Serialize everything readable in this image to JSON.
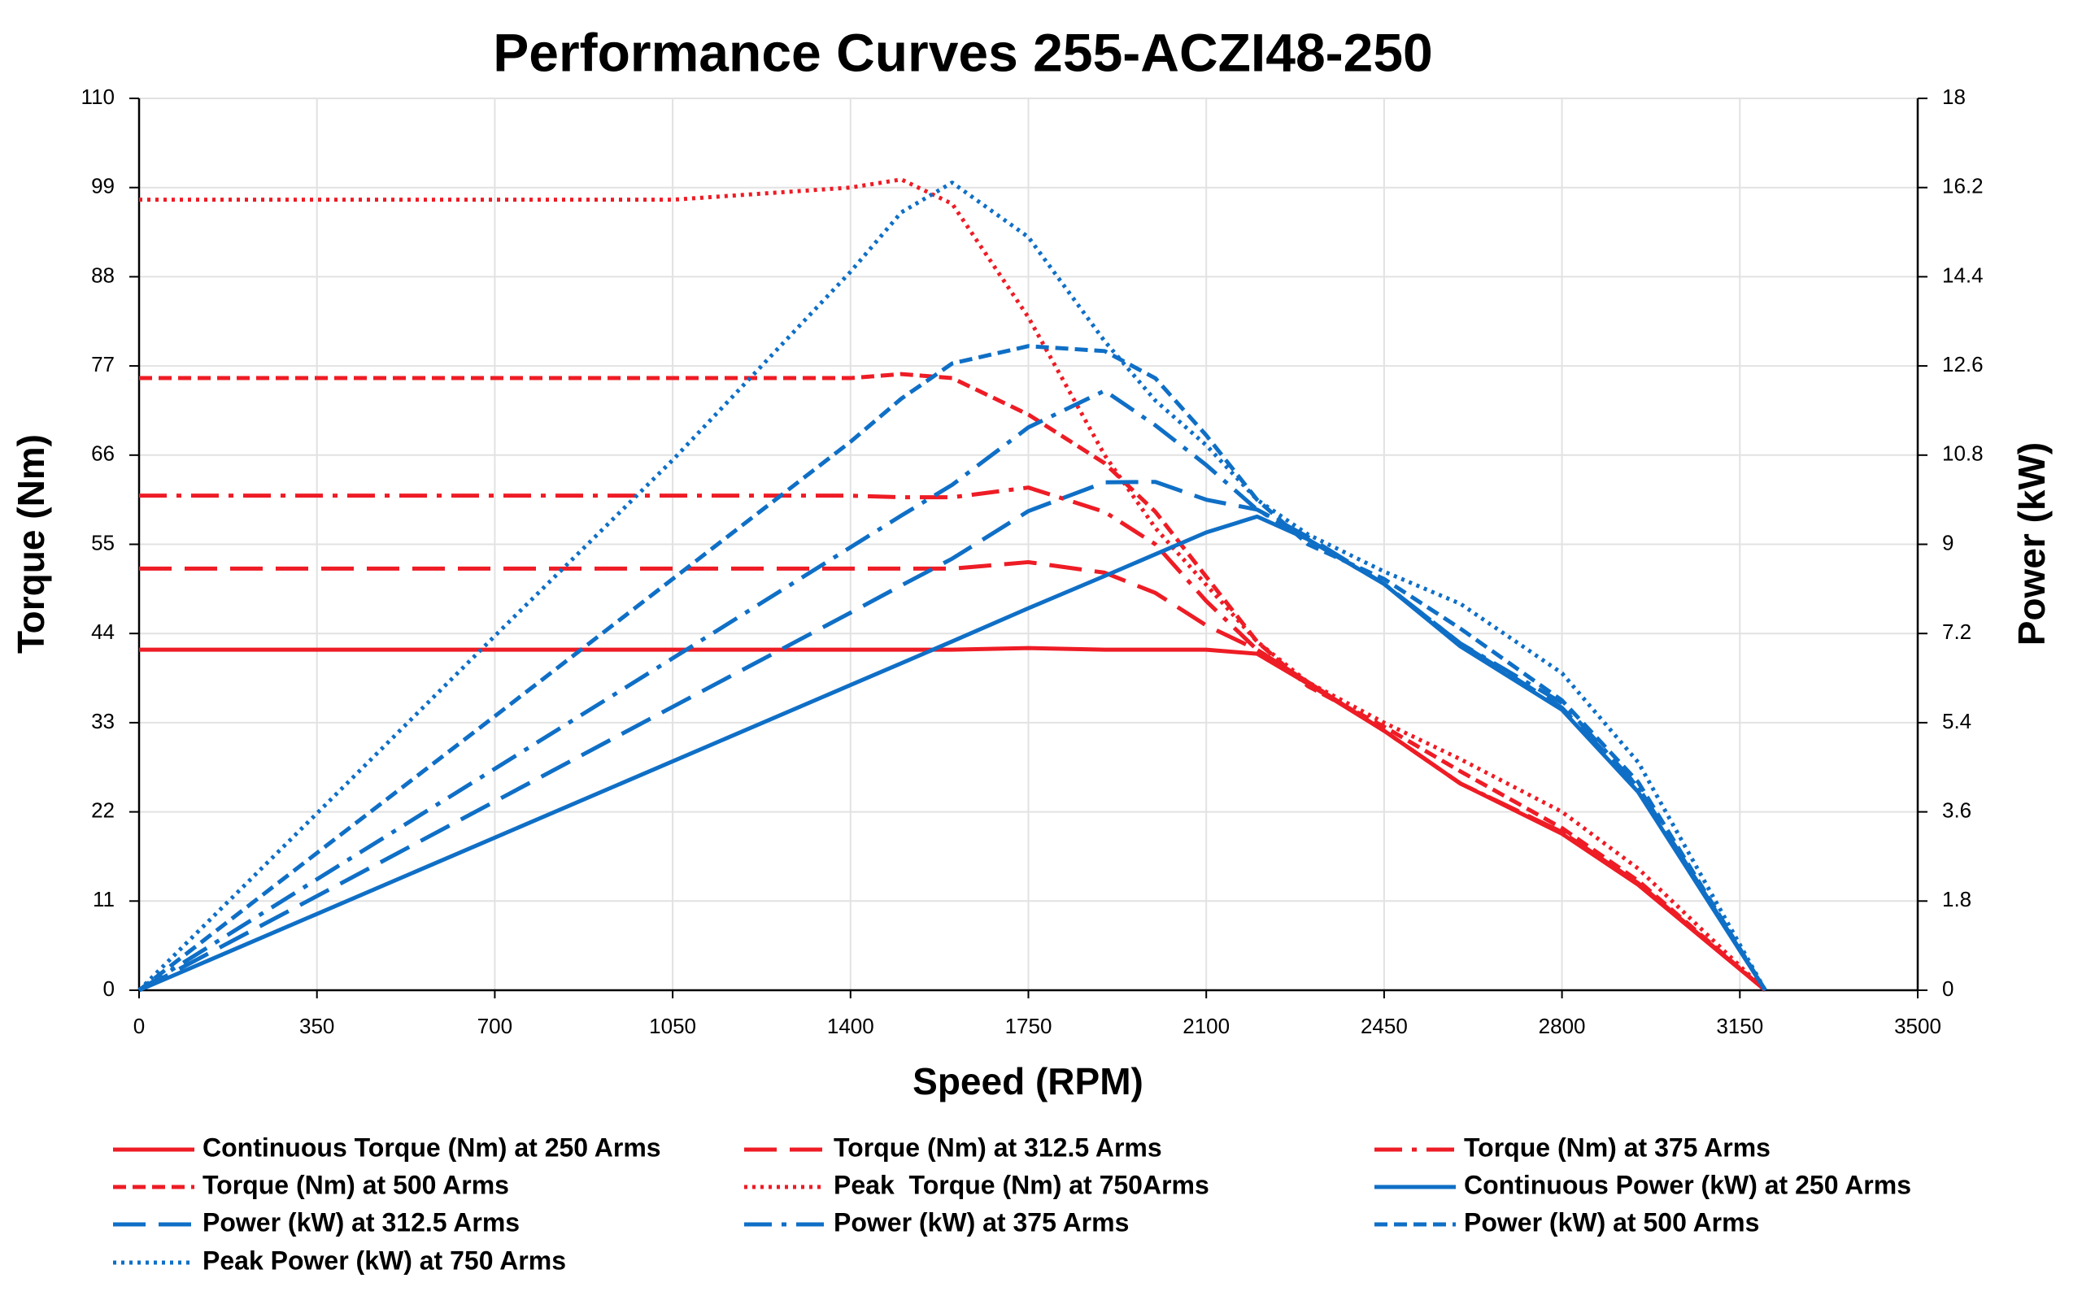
{
  "chart_data": {
    "type": "line",
    "title": "Performance Curves 255-ACZI48-250",
    "x_label": "Speed (RPM)",
    "y_label": "Torque (Nm)",
    "y2_label": "Power (kW)",
    "x": [
      0,
      350,
      700,
      1050,
      1400,
      1500,
      1600,
      1750,
      1900,
      2000,
      2100,
      2200,
      2300,
      2450,
      2600,
      2800,
      2950,
      3200
    ],
    "xlim": [
      0,
      3500
    ],
    "xticks": [
      0,
      350,
      700,
      1050,
      1400,
      1750,
      2100,
      2450,
      2800,
      3150,
      3500
    ],
    "ylim": [
      0,
      110
    ],
    "yticks": [
      0,
      11,
      22,
      33,
      44,
      55,
      66,
      77,
      88,
      99,
      110
    ],
    "y2lim": [
      0,
      18
    ],
    "y2ticks": [
      0,
      1.8,
      3.6,
      5.4,
      7.2,
      9,
      10.8,
      12.6,
      14.4,
      16.2,
      18
    ],
    "grid": true,
    "series": [
      {
        "name": "Continuous Torque (Nm) at 250 Arms",
        "color": "#ee1c25",
        "style": "solid",
        "values": [
          42,
          42,
          42,
          42,
          42,
          42,
          42,
          42.2,
          42,
          42,
          42,
          41.5,
          37.8,
          32,
          25.5,
          19.3,
          13,
          0
        ]
      },
      {
        "name": "Torque (Nm) at 312.5 Arms",
        "color": "#ee1c25",
        "style": "long-dash",
        "values": [
          52,
          52,
          52,
          52,
          52,
          52,
          52,
          52.8,
          51.5,
          49,
          45,
          42,
          38,
          32,
          25.5,
          19.5,
          13.2,
          0
        ]
      },
      {
        "name": "Torque (Nm) at 375 Arms",
        "color": "#ee1c25",
        "style": "dash-dot",
        "values": [
          61,
          61,
          61,
          61,
          61,
          60.8,
          60.8,
          62,
          59,
          55,
          48,
          42,
          38,
          32,
          25.5,
          19.5,
          13.2,
          0
        ]
      },
      {
        "name": "Torque (Nm) at 500 Arms",
        "color": "#ee1c25",
        "style": "dash",
        "values": [
          75.5,
          75.5,
          75.5,
          75.5,
          75.5,
          76,
          75.5,
          71,
          65,
          59,
          51,
          43,
          37.5,
          32.5,
          27,
          20,
          13.5,
          0
        ]
      },
      {
        "name": "Peak  Torque (Nm) at 750Arms",
        "color": "#ee1c25",
        "style": "dot",
        "values": [
          97.5,
          97.5,
          97.5,
          97.5,
          99,
          100,
          97,
          83,
          66,
          57,
          50,
          43,
          38,
          33,
          28.5,
          22,
          15,
          0
        ]
      },
      {
        "name": "Continuous Power (kW) at 250 Arms",
        "color": "#0f6fc6",
        "style": "solid",
        "axis": "y2",
        "values": [
          0,
          1.54,
          3.08,
          4.62,
          6.16,
          6.6,
          7.04,
          7.71,
          8.36,
          8.8,
          9.24,
          9.56,
          9.1,
          8.2,
          6.94,
          5.66,
          4,
          0
        ]
      },
      {
        "name": "Power (kW) at 312.5 Arms",
        "color": "#0f6fc6",
        "style": "long-dash",
        "axis": "y2",
        "values": [
          0,
          1.9,
          3.81,
          5.72,
          7.62,
          8.17,
          8.71,
          9.67,
          10.25,
          10.26,
          9.9,
          9.7,
          9.15,
          8.2,
          7,
          5.7,
          4.1,
          0
        ]
      },
      {
        "name": "Power (kW) at 375 Arms",
        "color": "#0f6fc6",
        "style": "dash-dot",
        "axis": "y2",
        "values": [
          0,
          2.24,
          4.47,
          6.7,
          8.94,
          9.58,
          10.2,
          11.36,
          12.1,
          11.4,
          10.6,
          9.7,
          9.1,
          8.2,
          7,
          5.8,
          4.1,
          0
        ]
      },
      {
        "name": "Power (kW) at 500 Arms",
        "color": "#0f6fc6",
        "style": "dash",
        "axis": "y2",
        "values": [
          0,
          2.77,
          5.53,
          8.3,
          11.07,
          11.94,
          12.65,
          13,
          12.9,
          12.35,
          11.2,
          9.9,
          9,
          8.3,
          7.3,
          5.85,
          4.2,
          0
        ]
      },
      {
        "name": "Peak Power (kW) at 750 Arms",
        "color": "#0f6fc6",
        "style": "dot",
        "axis": "y2",
        "values": [
          0,
          3.57,
          7.15,
          10.7,
          14.5,
          15.7,
          16.3,
          15.2,
          13.1,
          11.9,
          11,
          9.9,
          9.2,
          8.45,
          7.8,
          6.4,
          4.6,
          0
        ]
      }
    ]
  }
}
